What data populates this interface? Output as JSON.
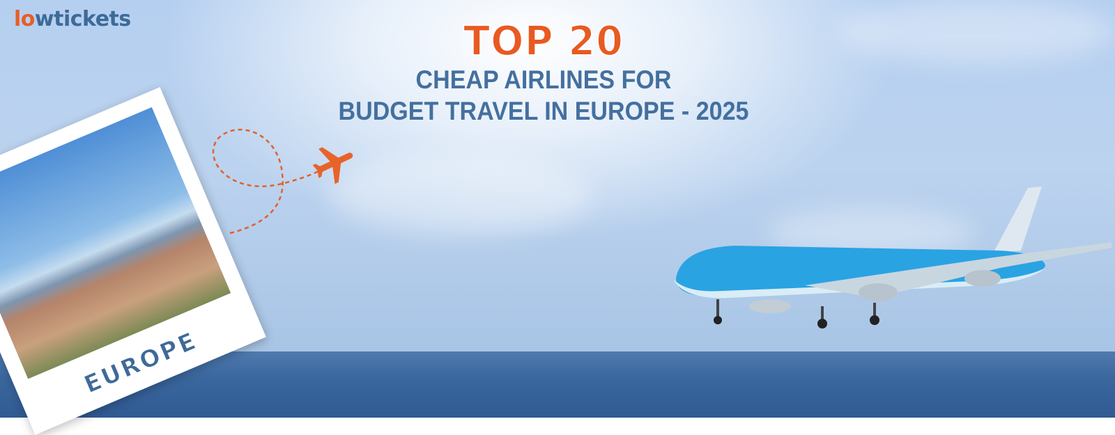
{
  "logo": {
    "text_before": "l",
    "text_o": "o",
    "text_after": "wtickets",
    "brand_colors": {
      "orange": "#e85d26",
      "blue": "#3d6a98"
    }
  },
  "headline": {
    "top": "TOP 20",
    "line1": "CHEAP AIRLINES FOR",
    "line2": "BUDGET TRAVEL IN EUROPE - 2025"
  },
  "polaroid": {
    "caption": "EUROPE"
  },
  "icons": [
    "location-pin-plane-icon",
    "airplane-icon"
  ]
}
